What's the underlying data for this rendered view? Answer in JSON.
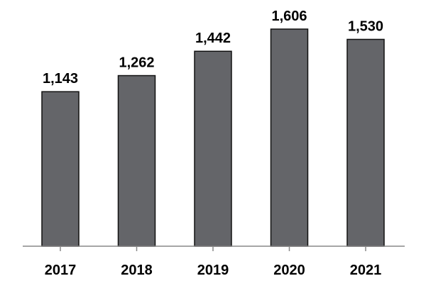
{
  "chart_data": {
    "type": "bar",
    "title": "",
    "xlabel": "",
    "ylabel": "",
    "categories": [
      "2017",
      "2018",
      "2019",
      "2020",
      "2021"
    ],
    "values": [
      1143,
      1262,
      1442,
      1606,
      1530
    ],
    "value_labels": [
      "1,143",
      "1,262",
      "1,442",
      "1,606",
      "1,530"
    ],
    "ylim": [
      0,
      1606
    ],
    "grid": false,
    "legend": "none",
    "bar_color": "#646569",
    "bar_edge_color": "#111111",
    "axis_color": "#888888"
  }
}
